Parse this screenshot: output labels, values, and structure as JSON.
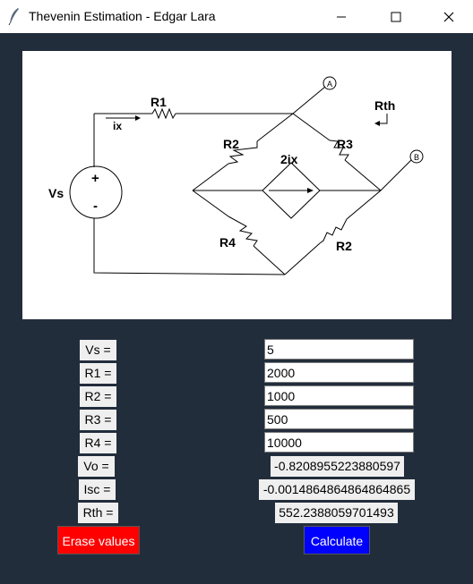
{
  "window": {
    "title": "Thevenin Estimation - Edgar Lara",
    "minimize_icon": "minimize-icon",
    "maximize_icon": "maximize-icon",
    "close_icon": "close-icon"
  },
  "circuit": {
    "vs": "Vs",
    "plus": "+",
    "minus": "-",
    "r1": "R1",
    "ix": "ix",
    "r2_top": "R2",
    "r3": "R3",
    "dep_source": "2ix",
    "r4": "R4",
    "r2_bottom": "R2",
    "node_a": "A",
    "node_b": "B",
    "rth": "Rth"
  },
  "form": {
    "labels": [
      "Vs =",
      "R1 =",
      "R2 =",
      "R3 =",
      "R4 =",
      "Vo =",
      "Isc =",
      "Rth ="
    ],
    "inputs": {
      "vs": "5",
      "r1": "2000",
      "r2": "1000",
      "r3": "500",
      "r4": "10000"
    },
    "outputs": {
      "vo": "-0.8208955223880597",
      "isc": "-0.0014864864864864865",
      "rth": "552.2388059701493"
    },
    "erase_label": "Erase values",
    "calculate_label": "Calculate"
  },
  "colors": {
    "background": "#222d3c",
    "erase_button": "#ff0000",
    "calculate_button": "#0000ff"
  }
}
